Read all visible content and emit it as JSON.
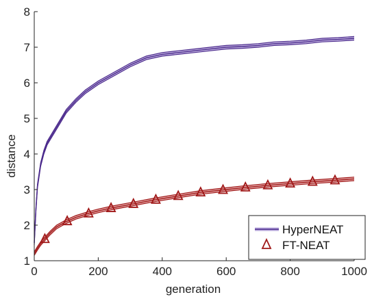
{
  "chart_data": {
    "type": "line",
    "xlabel": "generation",
    "ylabel": "distance",
    "xlim": [
      0,
      1000
    ],
    "ylim": [
      1,
      8
    ],
    "xticks": [
      0,
      200,
      400,
      600,
      800,
      1000
    ],
    "yticks": [
      1,
      2,
      3,
      4,
      5,
      6,
      7,
      8
    ],
    "grid": false,
    "legend_position": "bottom-right",
    "series": [
      {
        "name": "HyperNEAT",
        "color": "#4b2a8c",
        "band_color": "#b8a8dc",
        "marker": "none",
        "x": [
          0,
          5,
          10,
          20,
          30,
          40,
          50,
          60,
          80,
          100,
          130,
          160,
          200,
          250,
          300,
          350,
          400,
          450,
          500,
          550,
          600,
          650,
          700,
          750,
          800,
          850,
          900,
          950,
          1000
        ],
        "y": [
          1.5,
          2.4,
          3.1,
          3.7,
          4.05,
          4.3,
          4.45,
          4.6,
          4.9,
          5.2,
          5.5,
          5.75,
          6.0,
          6.25,
          6.5,
          6.7,
          6.8,
          6.85,
          6.9,
          6.95,
          7.0,
          7.02,
          7.05,
          7.1,
          7.12,
          7.15,
          7.2,
          7.22,
          7.25
        ],
        "band": 0.05
      },
      {
        "name": "FT-NEAT",
        "color": "#a01818",
        "band_color": "#e0a0a0",
        "marker": "triangle",
        "x": [
          0,
          10,
          20,
          30,
          50,
          70,
          100,
          130,
          170,
          200,
          240,
          300,
          370,
          450,
          520,
          600,
          660,
          730,
          800,
          870,
          940,
          1000
        ],
        "y": [
          1.2,
          1.35,
          1.48,
          1.58,
          1.78,
          1.95,
          2.1,
          2.22,
          2.33,
          2.4,
          2.48,
          2.58,
          2.7,
          2.82,
          2.92,
          3.0,
          3.06,
          3.12,
          3.17,
          3.22,
          3.26,
          3.3
        ],
        "marker_x": [
          33,
          103,
          170,
          240,
          310,
          380,
          450,
          520,
          590,
          660,
          730,
          800,
          870,
          940
        ],
        "band": 0.05
      }
    ]
  }
}
